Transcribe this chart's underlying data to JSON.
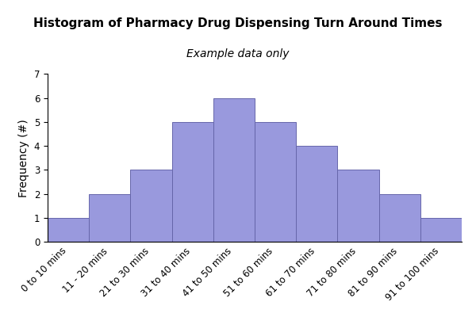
{
  "title": "Histogram of Pharmacy Drug Dispensing Turn Around Times",
  "subtitle": "Example data only",
  "ylabel": "Frequency (#)",
  "categories": [
    "0 to 10 mins",
    "11 - 20 mins",
    "21 to 30 mins",
    "31 to 40 mins",
    "41 to 50 mins",
    "51 to 60 mins",
    "61 to 70 mins",
    "71 to 80 mins",
    "81 to 90 mins",
    "91 to 100 mins"
  ],
  "values": [
    1,
    2,
    3,
    5,
    6,
    5,
    4,
    3,
    2,
    1
  ],
  "bar_color": "#9999dd",
  "bar_edge_color": "#6666aa",
  "ylim": [
    0,
    7
  ],
  "yticks": [
    0,
    1,
    2,
    3,
    4,
    5,
    6,
    7
  ],
  "title_fontsize": 11,
  "subtitle_fontsize": 10,
  "ylabel_fontsize": 10,
  "tick_fontsize": 8.5,
  "background_color": "#ffffff"
}
